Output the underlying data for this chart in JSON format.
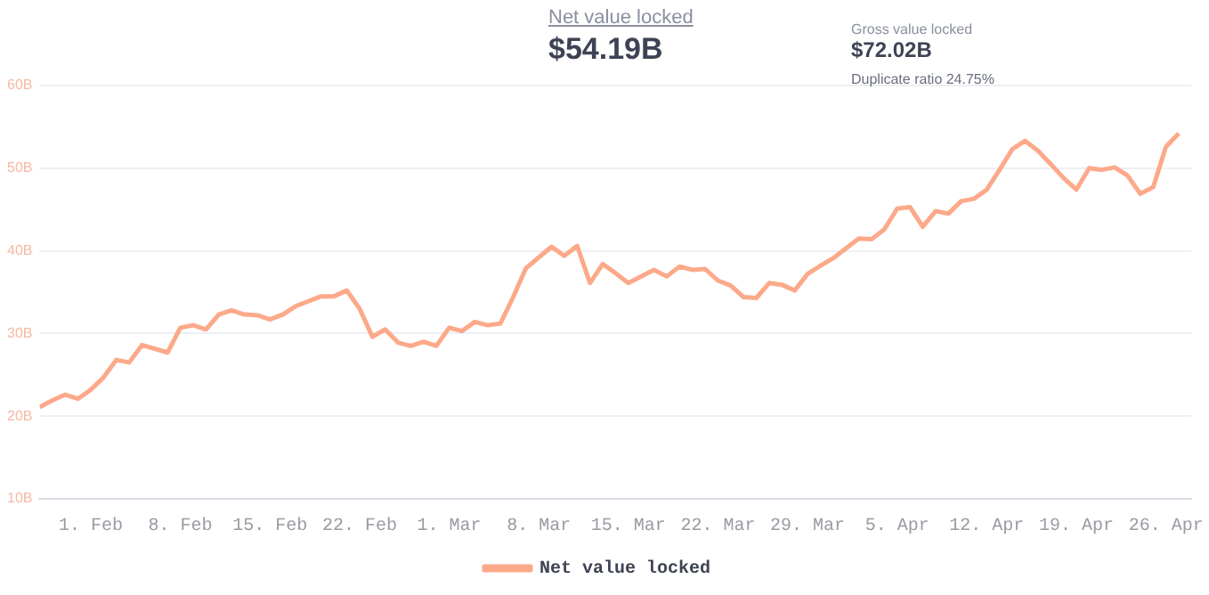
{
  "chart_data": {
    "type": "line",
    "title": "Net value locked",
    "subtitle": "$54.19B",
    "annotations": [
      "Gross value locked",
      "$72.02B",
      "Duplicate ratio 24.75%"
    ],
    "x": [
      "--01-28",
      "--01-29",
      "--01-30",
      "--01-31",
      "--02-01",
      "--02-02",
      "--02-03",
      "--02-04",
      "--02-05",
      "--02-07",
      "--02-08",
      "--02-09",
      "--02-10",
      "--02-11",
      "--02-12",
      "--02-13",
      "--02-14",
      "--02-15",
      "--02-16",
      "--02-17",
      "--02-19",
      "--02-20",
      "--02-21",
      "--02-22",
      "--02-23",
      "--02-24",
      "--02-25",
      "--02-26",
      "--02-27",
      "--02-28",
      "--03-01",
      "--03-02",
      "--03-03",
      "--03-04",
      "--03-05",
      "--03-06",
      "--03-07",
      "--03-08",
      "--03-09",
      "--03-10",
      "--03-11",
      "--03-12",
      "--03-13",
      "--03-14",
      "--03-15",
      "--03-17",
      "--03-18",
      "--03-19",
      "--03-20",
      "--03-21",
      "--03-22",
      "--03-23",
      "--03-24",
      "--03-25",
      "--03-26",
      "--03-27",
      "--03-28",
      "--03-29",
      "--03-30",
      "--03-31",
      "--04-02",
      "--04-03",
      "--04-04",
      "--04-05",
      "--04-06",
      "--04-07",
      "--04-08",
      "--04-09",
      "--04-10",
      "--04-11",
      "--04-12",
      "--04-13",
      "--04-14",
      "--04-15",
      "--04-16",
      "--04-17",
      "--04-18",
      "--04-19",
      "--04-20",
      "--04-21",
      "--04-22",
      "--04-23",
      "--04-24",
      "--04-25",
      "--04-26",
      "--04-27"
    ],
    "series": [
      {
        "name": "Net value locked",
        "color": "#fca98a",
        "values": [
          21.1,
          21.9,
          22.6,
          22.1,
          23.2,
          24.7,
          26.8,
          26.5,
          28.6,
          27.7,
          30.7,
          31.0,
          30.5,
          32.3,
          32.8,
          32.3,
          32.2,
          31.7,
          32.3,
          33.3,
          34.5,
          34.5,
          35.2,
          33.0,
          29.6,
          30.5,
          28.9,
          28.5,
          29.0,
          28.5,
          30.7,
          30.3,
          31.4,
          31.0,
          31.2,
          34.4,
          37.9,
          39.2,
          40.5,
          39.4,
          40.6,
          36.1,
          38.4,
          37.3,
          36.1,
          37.7,
          36.9,
          38.1,
          37.7,
          37.8,
          36.4,
          35.8,
          34.4,
          34.3,
          36.1,
          35.9,
          35.2,
          37.2,
          38.2,
          39.1,
          41.5,
          41.4,
          42.6,
          45.1,
          45.3,
          42.9,
          44.8,
          44.5,
          46.0,
          46.3,
          47.4,
          49.8,
          52.3,
          53.3,
          52.1,
          50.5,
          48.8,
          47.4,
          50.0,
          49.8,
          50.1,
          49.1,
          46.9,
          47.7,
          52.6,
          54.2
        ]
      }
    ],
    "xlim": [
      "--01-28",
      "--04-28"
    ],
    "xticks": [
      {
        "value": "--02-01",
        "label": "1. Feb"
      },
      {
        "value": "--02-08",
        "label": "8. Feb"
      },
      {
        "value": "--02-15",
        "label": "15. Feb"
      },
      {
        "value": "--02-22",
        "label": "22. Feb"
      },
      {
        "value": "--03-01",
        "label": "1. Mar"
      },
      {
        "value": "--03-08",
        "label": "8. Mar"
      },
      {
        "value": "--03-15",
        "label": "15. Mar"
      },
      {
        "value": "--03-22",
        "label": "22. Mar"
      },
      {
        "value": "--03-29",
        "label": "29. Mar"
      },
      {
        "value": "--04-05",
        "label": "5. Apr"
      },
      {
        "value": "--04-12",
        "label": "12. Apr"
      },
      {
        "value": "--04-19",
        "label": "19. Apr"
      },
      {
        "value": "--04-26",
        "label": "26. Apr"
      }
    ],
    "ylim": [
      10,
      60
    ],
    "yticks": [
      {
        "value": 10,
        "label": "10B"
      },
      {
        "value": 20,
        "label": "20B"
      },
      {
        "value": 30,
        "label": "30B"
      },
      {
        "value": 40,
        "label": "40B"
      },
      {
        "value": 50,
        "label": "50B"
      },
      {
        "value": 60,
        "label": "60B"
      }
    ],
    "grid": "y",
    "legend": "bottom",
    "marker": "none",
    "line_style": "solid"
  }
}
